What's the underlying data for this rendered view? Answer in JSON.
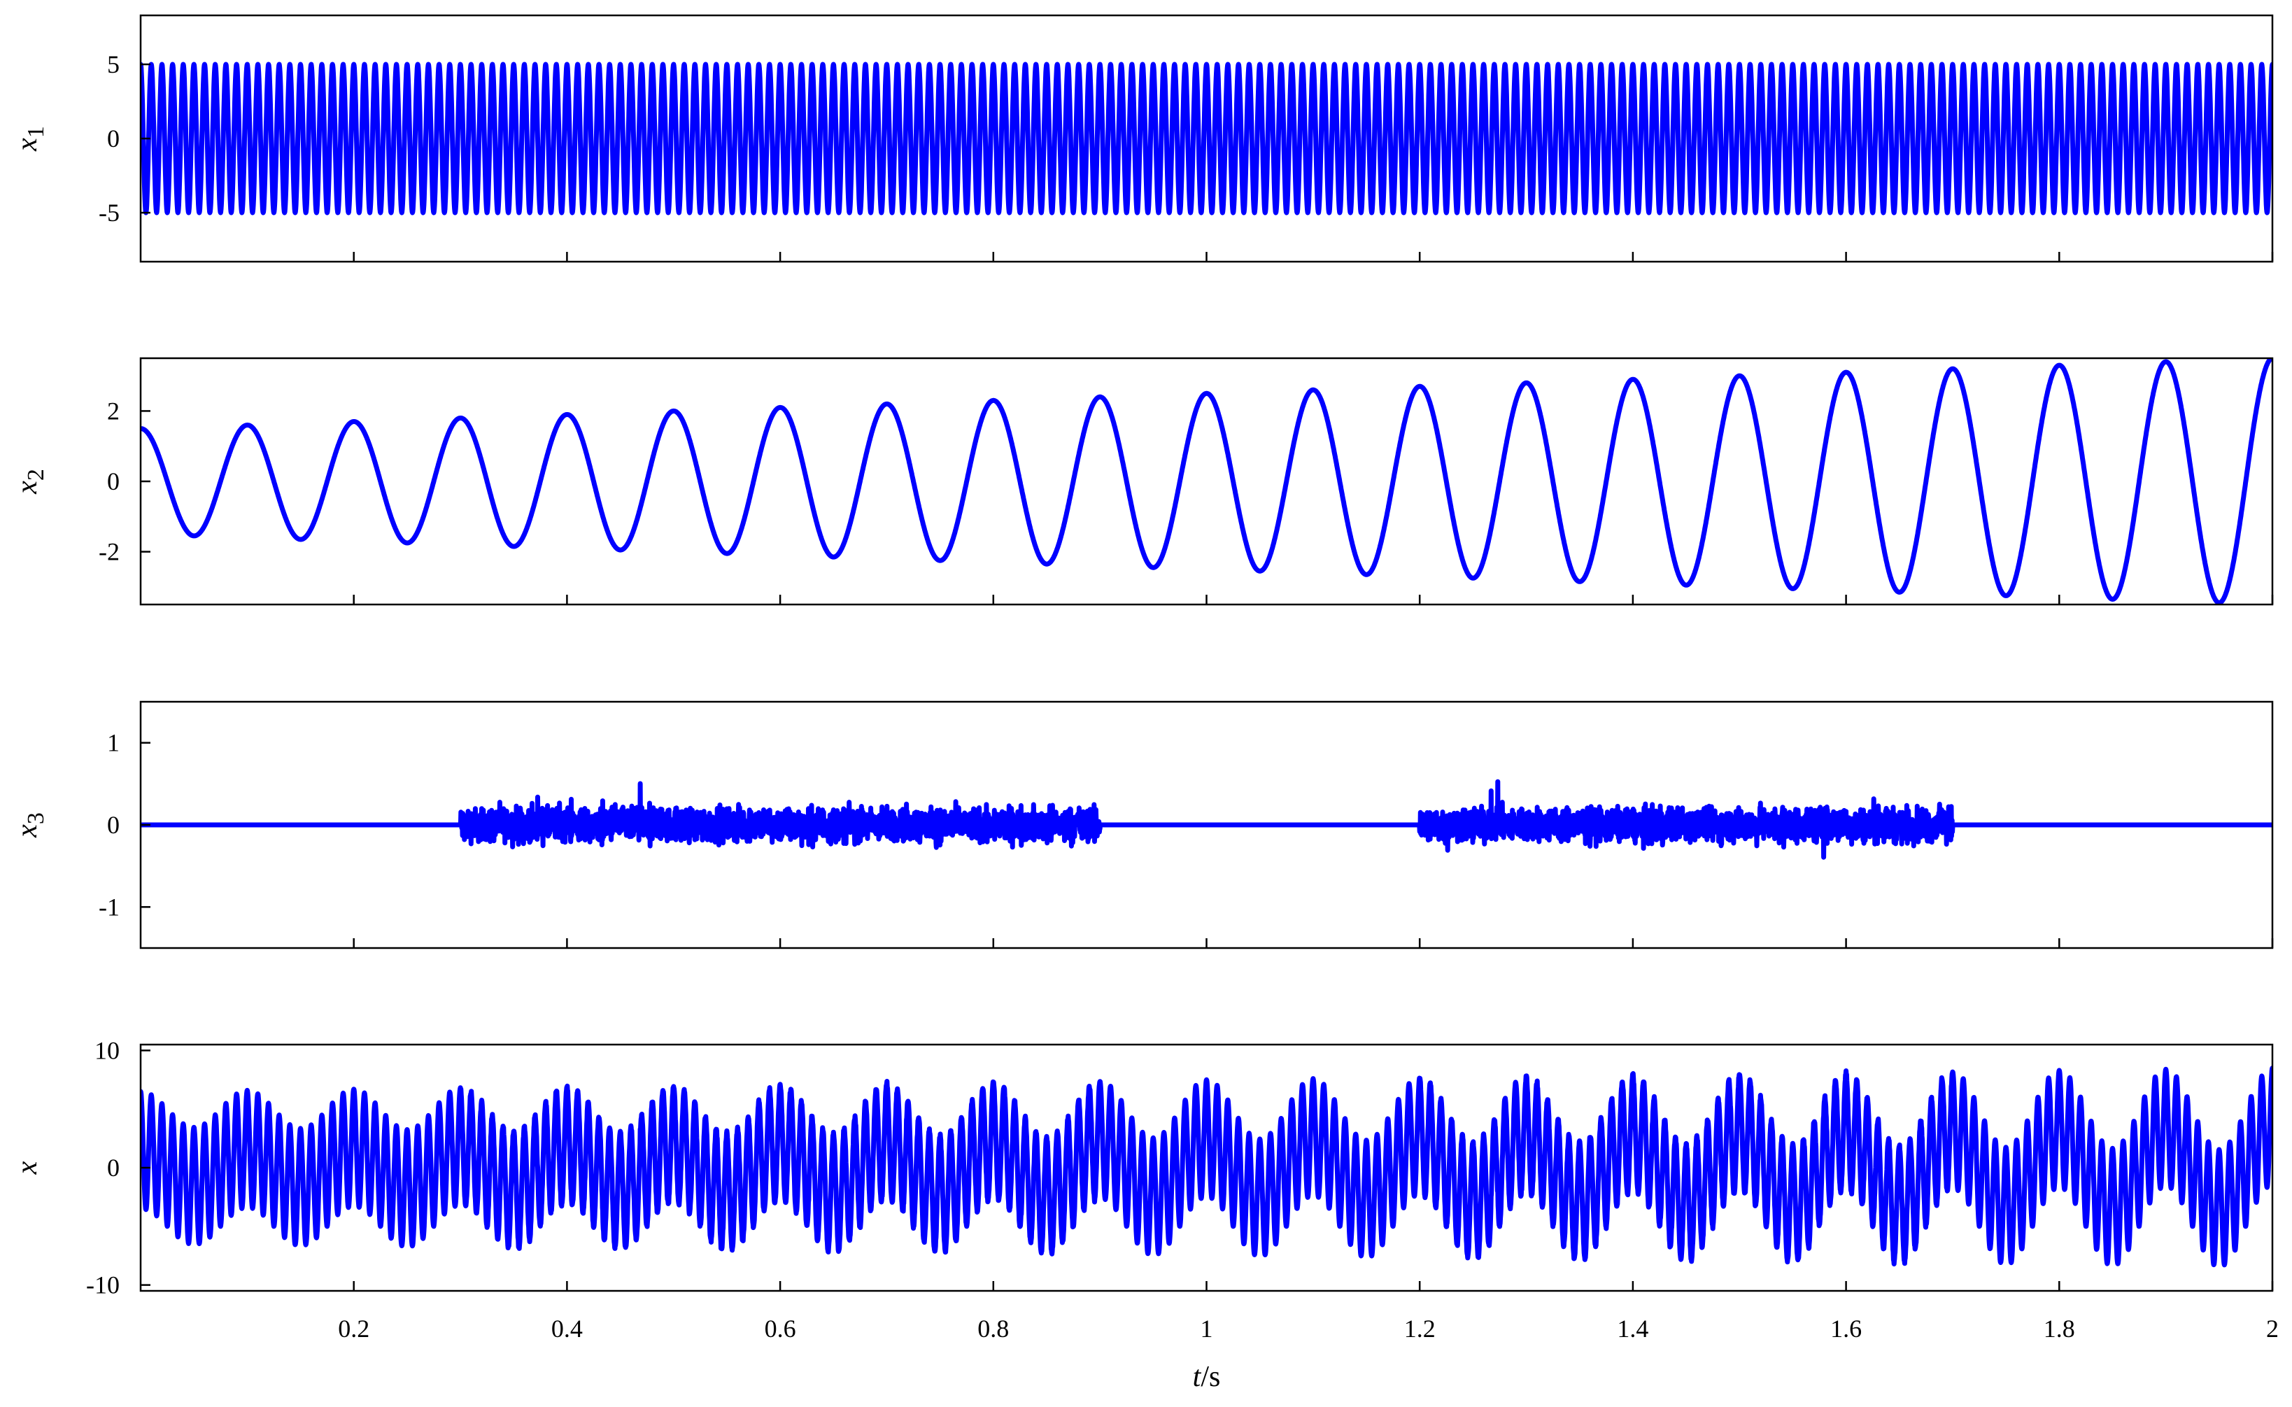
{
  "chart_data": [
    {
      "type": "line",
      "ylabel": "x",
      "ylabel_sub": "1",
      "ylim": [
        -8.3,
        8.3
      ],
      "yticks": [
        -5,
        0,
        5
      ],
      "yticklabels": [
        "-5",
        "0",
        "5"
      ],
      "xlim": [
        0,
        2
      ],
      "color": "#0000ff",
      "series": [
        {
          "signal": "sine",
          "amplitude": 5,
          "frequency_hz": 100,
          "phase_deg": 90
        }
      ]
    },
    {
      "type": "line",
      "ylabel": "x",
      "ylabel_sub": "2",
      "ylim": [
        -3.5,
        3.5
      ],
      "yticks": [
        -2,
        0,
        2
      ],
      "yticklabels": [
        "-2",
        "0",
        "2"
      ],
      "xlim": [
        0,
        2
      ],
      "color": "#0000ff",
      "series": [
        {
          "signal": "sine",
          "amplitude_start": 1.5,
          "amplitude_end": 3.5,
          "frequency_hz": 10,
          "phase_deg": 90
        }
      ]
    },
    {
      "type": "line",
      "ylabel": "x",
      "ylabel_sub": "3",
      "ylim": [
        -1.5,
        1.5
      ],
      "yticks": [
        -1,
        0,
        1
      ],
      "yticklabels": [
        "-1",
        "0",
        "1"
      ],
      "xlim": [
        0,
        2
      ],
      "color": "#0000ff",
      "series": [
        {
          "signal": "noise_bursts",
          "baseline": 0,
          "noise_amplitude": 0.3,
          "peak": 0.7,
          "bursts": [
            [
              0.3,
              0.9
            ],
            [
              1.2,
              1.7
            ]
          ]
        }
      ]
    },
    {
      "type": "line",
      "ylabel": "x",
      "ylabel_sub": "",
      "ylim": [
        -10.5,
        10.5
      ],
      "yticks": [
        -10,
        0,
        10
      ],
      "yticklabels": [
        "-10",
        "0",
        "10"
      ],
      "xlim": [
        0,
        2
      ],
      "xticks": [
        0.2,
        0.4,
        0.6,
        0.8,
        1,
        1.2,
        1.4,
        1.6,
        1.8,
        2
      ],
      "xticklabels": [
        "0.2",
        "0.4",
        "0.6",
        "0.8",
        "1",
        "1.2",
        "1.4",
        "1.6",
        "1.8",
        "2"
      ],
      "xlabel_italic": "t",
      "xlabel_unit": "/s",
      "color": "#0000ff",
      "series": [
        {
          "signal": "sum",
          "components": [
            "x1",
            "x2",
            "x3"
          ]
        }
      ]
    }
  ]
}
